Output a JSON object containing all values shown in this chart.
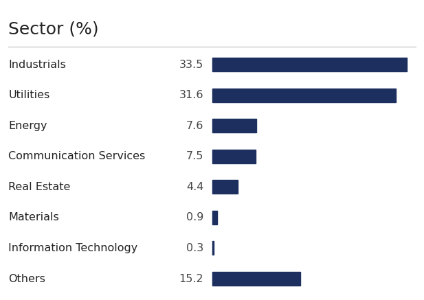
{
  "title": "Sector (%)",
  "categories": [
    "Industrials",
    "Utilities",
    "Energy",
    "Communication Services",
    "Real Estate",
    "Materials",
    "Information Technology",
    "Others"
  ],
  "values": [
    33.5,
    31.6,
    7.6,
    7.5,
    4.4,
    0.9,
    0.3,
    15.2
  ],
  "bar_color": "#1c2f5e",
  "background_color": "#ffffff",
  "title_fontsize": 18,
  "label_fontsize": 11.5,
  "value_fontsize": 11.5,
  "text_color": "#222222",
  "value_color": "#444444",
  "separator_line_color": "#bbbbbb",
  "bar_max": 35.0,
  "title_font_weight": "normal"
}
